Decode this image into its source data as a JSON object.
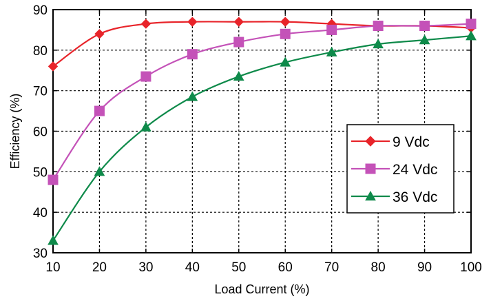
{
  "chart_data": {
    "type": "line",
    "xlabel": "Load Current (%)",
    "ylabel": "Efficiency (%)",
    "xlim": [
      10,
      100
    ],
    "ylim": [
      30,
      90
    ],
    "xticks": [
      "10",
      "20",
      "30",
      "40",
      "50",
      "60",
      "70",
      "80",
      "90",
      "100"
    ],
    "yticks": [
      "30",
      "40",
      "50",
      "60",
      "70",
      "80",
      "90"
    ],
    "grid": true,
    "grid_style": "dashed",
    "legend_position": "center-right",
    "x": [
      10,
      20,
      30,
      40,
      50,
      60,
      70,
      80,
      90,
      100
    ],
    "series": [
      {
        "name": "9  Vdc",
        "marker": "diamond",
        "color": "#e8242a",
        "values": [
          76,
          84,
          86.5,
          87,
          87,
          87,
          86.5,
          86,
          86,
          85.5
        ]
      },
      {
        "name": "24 Vdc",
        "marker": "square",
        "color": "#c452b8",
        "values": [
          48,
          65,
          73.5,
          79,
          82,
          84,
          85,
          86,
          86,
          86.5
        ]
      },
      {
        "name": "36 Vdc",
        "marker": "triangle",
        "color": "#0e8a4a",
        "values": [
          33,
          50,
          61,
          68.5,
          73.5,
          77,
          79.5,
          81.5,
          82.5,
          83.5
        ]
      }
    ]
  }
}
